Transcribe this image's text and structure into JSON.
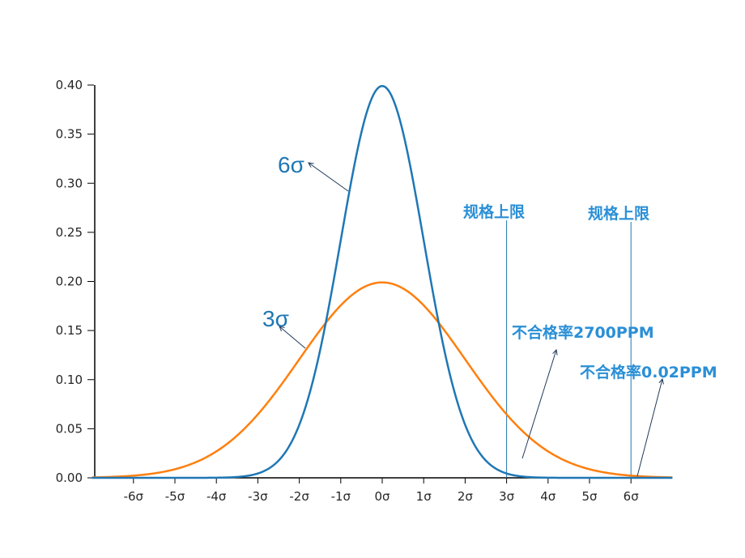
{
  "chart_data": {
    "type": "line",
    "x_range": [
      -7,
      7
    ],
    "ylim": [
      0,
      0.4
    ],
    "grid": false,
    "yticks": [
      {
        "value": 0.0,
        "label": "0.00"
      },
      {
        "value": 0.05,
        "label": "0.05"
      },
      {
        "value": 0.1,
        "label": "0.10"
      },
      {
        "value": 0.15,
        "label": "0.15"
      },
      {
        "value": 0.2,
        "label": "0.20"
      },
      {
        "value": 0.25,
        "label": "0.25"
      },
      {
        "value": 0.3,
        "label": "0.30"
      },
      {
        "value": 0.35,
        "label": "0.35"
      },
      {
        "value": 0.4,
        "label": "0.40"
      }
    ],
    "xticks": [
      {
        "value": -6,
        "label": "-6σ"
      },
      {
        "value": -5,
        "label": "-5σ"
      },
      {
        "value": -4,
        "label": "-4σ"
      },
      {
        "value": -3,
        "label": "-3σ"
      },
      {
        "value": -2,
        "label": "-2σ"
      },
      {
        "value": -1,
        "label": "-1σ"
      },
      {
        "value": 0,
        "label": "0σ"
      },
      {
        "value": 1,
        "label": "1σ"
      },
      {
        "value": 2,
        "label": "2σ"
      },
      {
        "value": 3,
        "label": "3σ"
      },
      {
        "value": 4,
        "label": "4σ"
      },
      {
        "value": 5,
        "label": "5σ"
      },
      {
        "value": 6,
        "label": "6σ"
      }
    ],
    "series": [
      {
        "key": "narrow",
        "sigma": 1,
        "peak": 0.399,
        "color": "#1f77b4"
      },
      {
        "key": "wide",
        "sigma": 2,
        "peak": 0.199,
        "color": "#ff7f0e"
      }
    ],
    "spec_limits": [
      {
        "x": 3,
        "label": "规格上限"
      },
      {
        "x": 6,
        "label": "规格上限"
      }
    ],
    "annotations": [
      {
        "key": "six_sigma",
        "text": "6σ",
        "color": "#1f77b4",
        "point": [
          -0.8,
          0.29
        ]
      },
      {
        "key": "three_sigma",
        "text": "3σ",
        "color": "#1f77b4",
        "point": [
          -1.9,
          0.13
        ]
      },
      {
        "key": "reject_2700",
        "text": "不合格率2700PPM",
        "color": "#2a8fd6",
        "point": [
          3.4,
          0.02
        ]
      },
      {
        "key": "reject_002",
        "text": "不合格率0.02PPM",
        "color": "#2a8fd6",
        "point": [
          6.2,
          0.002
        ]
      }
    ]
  }
}
